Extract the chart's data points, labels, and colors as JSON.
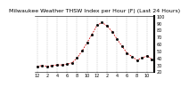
{
  "title": "Milwaukee Weather THSW Index per Hour (F) (Last 24 Hours)",
  "hours": [
    0,
    1,
    2,
    3,
    4,
    5,
    6,
    7,
    8,
    9,
    10,
    11,
    12,
    13,
    14,
    15,
    16,
    17,
    18,
    19,
    20,
    21,
    22,
    23
  ],
  "values": [
    28,
    29,
    28,
    29,
    30,
    30,
    31,
    33,
    40,
    50,
    62,
    74,
    87,
    91,
    86,
    78,
    67,
    57,
    47,
    42,
    37,
    40,
    43,
    38
  ],
  "line_color": "#cc0000",
  "dot_color": "#000000",
  "bg_color": "#ffffff",
  "plot_bg": "#ffffff",
  "grid_color": "#999999",
  "ylim_min": 20,
  "ylim_max": 100,
  "ytick_values": [
    20,
    30,
    40,
    50,
    60,
    70,
    80,
    90,
    100
  ],
  "xtick_positions": [
    0,
    2,
    4,
    6,
    8,
    10,
    12,
    14,
    16,
    18,
    20,
    22
  ],
  "xtick_labels": [
    "12",
    "2",
    "4",
    "6",
    "8",
    "10",
    "12",
    "2",
    "4",
    "6",
    "8",
    "10"
  ],
  "title_fontsize": 4.5,
  "tick_fontsize": 3.5,
  "line_width": 0.6,
  "marker_size": 1.0
}
